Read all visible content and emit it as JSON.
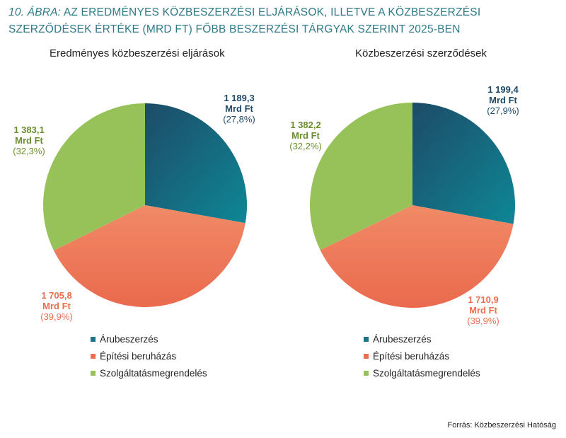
{
  "figure": {
    "number": "10. ábra:",
    "title": "Az eredményes közbeszerzési eljárások, illetve a közbeszerzési szerződések értéke (Mrd Ft) főbb beszerzési tárgyak szerint 2025-ben",
    "source": "Forrás: Közbeszerzési Hatóság"
  },
  "colors": {
    "arubeszerzes_light": "#0e8796",
    "arubeszerzes_dark": "#1d4b67",
    "epitesi_light": "#f08a66",
    "epitesi_dark": "#ea6a4e",
    "szolgaltatas": "#97c25a"
  },
  "chart_data": [
    {
      "type": "pie",
      "title": "Eredményes közbeszerzési eljárások",
      "categories": [
        "Árubeszerzés",
        "Építési beruházás",
        "Szolgáltatásmegrendelés"
      ],
      "values": [
        1189.3,
        1705.8,
        1383.1
      ],
      "percents": [
        27.8,
        39.9,
        32.3
      ],
      "value_labels": [
        "1 189,3",
        "1 705,8",
        "1 383,1"
      ],
      "unit_label": "Mrd Ft",
      "percent_labels": [
        "(27,8%)",
        "(39,9%)",
        "(32,3%)"
      ],
      "legend": [
        "Árubeszerzés",
        "Építési beruházás",
        "Szolgáltatásmegrendelés"
      ]
    },
    {
      "type": "pie",
      "title": "Közbeszerzési szerződések",
      "categories": [
        "Árubeszerzés",
        "Építési beruházás",
        "Szolgáltatásmegrendelés"
      ],
      "values": [
        1199.4,
        1710.9,
        1382.2
      ],
      "percents": [
        27.9,
        39.9,
        32.2
      ],
      "value_labels": [
        "1 199,4",
        "1 710,9",
        "1 382,2"
      ],
      "unit_label": "Mrd Ft",
      "percent_labels": [
        "(27,9%)",
        "(39,9%)",
        "(32,2%)"
      ],
      "legend": [
        "Árubeszerzés",
        "Építési beruházás",
        "Szolgáltatásmegrendelés"
      ]
    }
  ]
}
